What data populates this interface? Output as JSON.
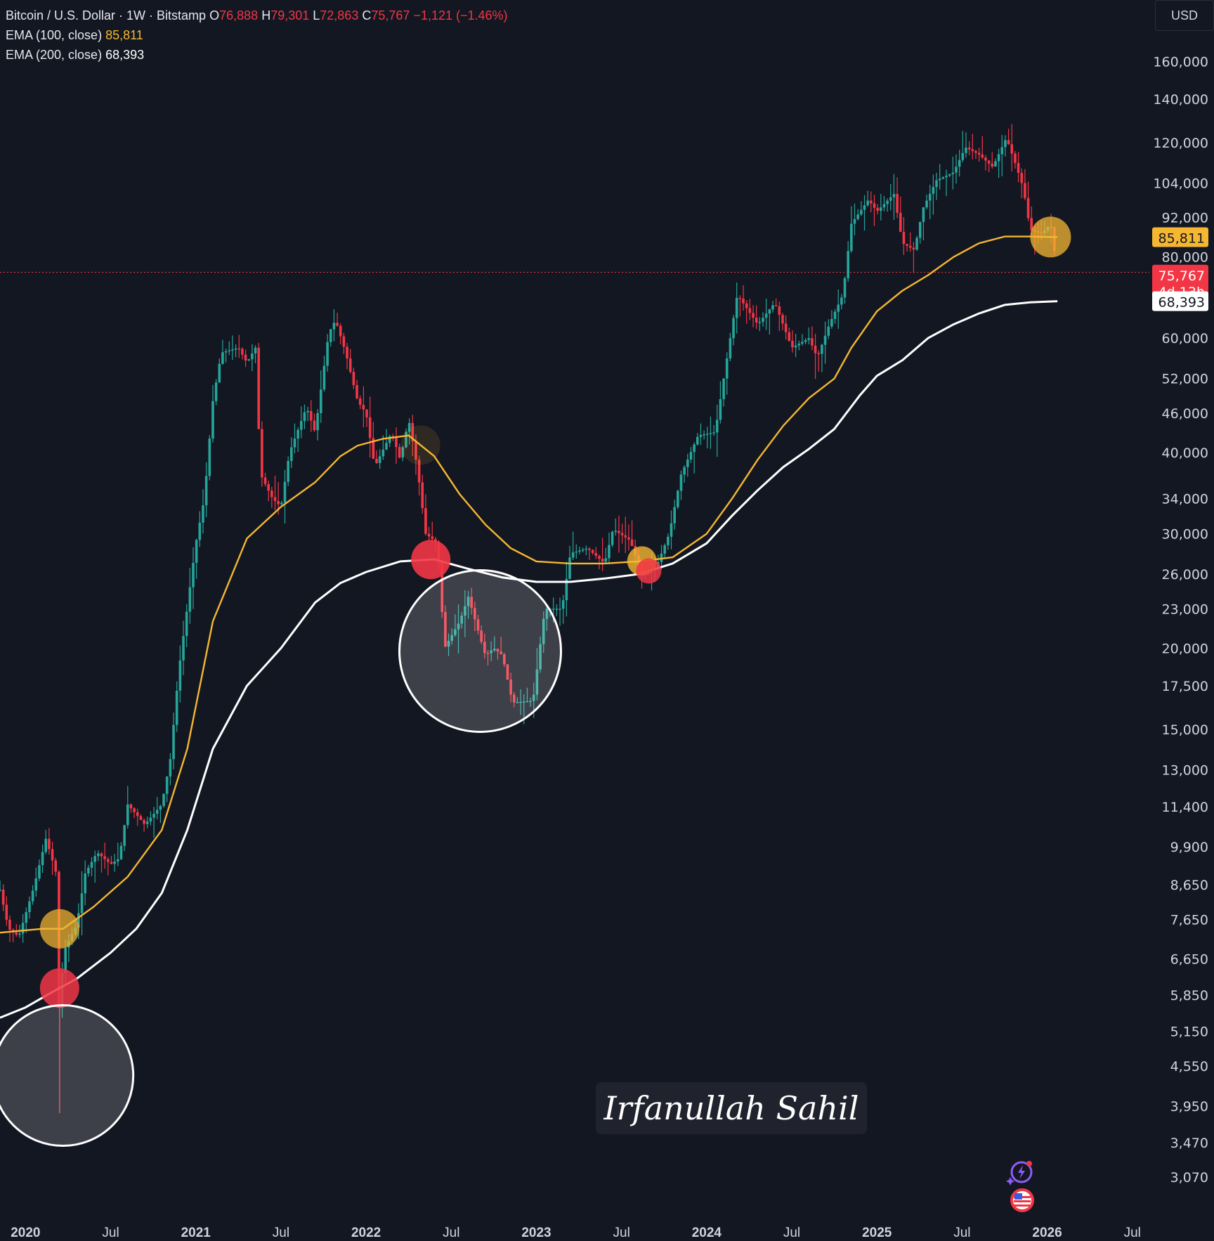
{
  "header": {
    "symbol": "Bitcoin / U.S. Dollar · 1W · Bitstamp",
    "open_label": "O",
    "open": "76,888",
    "high_label": "H",
    "high": "79,301",
    "low_label": "L",
    "low": "72,863",
    "close_label": "C",
    "close": "75,767",
    "change": "−1,121 (−1.46%)",
    "ema100_label": "EMA (100, close)",
    "ema100_value": "85,811",
    "ema200_label": "EMA (200, close)",
    "ema200_value": "68,393"
  },
  "currency_button": "USD",
  "watermark": "Irfanullah Sahil",
  "icons": {
    "assistant": "sparkle-bolt-icon",
    "region": "us-flag-icon"
  },
  "colors": {
    "background": "#131722",
    "up": "#26a69a",
    "down": "#f23645",
    "ema100": "#f5b731",
    "ema200": "#ffffff"
  },
  "chart_data": {
    "type": "line",
    "title": "Bitcoin / U.S. Dollar · 1W · Bitstamp",
    "scale": "log",
    "ylim": [
      2800,
      180000
    ],
    "xlim": [
      2019.85,
      2026.6
    ],
    "y_ticks": [
      "160,000",
      "140,000",
      "120,000",
      "104,000",
      "92,000",
      "80,000",
      "60,000",
      "52,000",
      "46,000",
      "40,000",
      "34,000",
      "30,000",
      "26,000",
      "23,000",
      "20,000",
      "17,500",
      "15,000",
      "13,000",
      "11,400",
      "9,900",
      "8,650",
      "7,650",
      "6,650",
      "5,850",
      "5,150",
      "4,550",
      "3,950",
      "3,470",
      "3,070"
    ],
    "x_ticks": [
      {
        "label": "2020",
        "x": 2020.0
      },
      {
        "label": "Jul",
        "x": 2020.5
      },
      {
        "label": "2021",
        "x": 2021.0
      },
      {
        "label": "Jul",
        "x": 2021.5
      },
      {
        "label": "2022",
        "x": 2022.0
      },
      {
        "label": "Jul",
        "x": 2022.5
      },
      {
        "label": "2023",
        "x": 2023.0
      },
      {
        "label": "Jul",
        "x": 2023.5
      },
      {
        "label": "2024",
        "x": 2024.0
      },
      {
        "label": "Jul",
        "x": 2024.5
      },
      {
        "label": "2025",
        "x": 2025.0
      },
      {
        "label": "Jul",
        "x": 2025.5
      },
      {
        "label": "2026",
        "x": 2026.0
      },
      {
        "label": "Jul",
        "x": 2026.5
      }
    ],
    "price_path": [
      [
        2019.85,
        8500
      ],
      [
        2019.9,
        7400
      ],
      [
        2019.96,
        7200
      ],
      [
        2020.05,
        8600
      ],
      [
        2020.12,
        10200
      ],
      [
        2020.18,
        9000
      ],
      [
        2020.2,
        5000
      ],
      [
        2020.22,
        6800
      ],
      [
        2020.3,
        7500
      ],
      [
        2020.35,
        9000
      ],
      [
        2020.42,
        9700
      ],
      [
        2020.5,
        9300
      ],
      [
        2020.55,
        9500
      ],
      [
        2020.6,
        11500
      ],
      [
        2020.7,
        10700
      ],
      [
        2020.8,
        11500
      ],
      [
        2020.85,
        13500
      ],
      [
        2020.9,
        18500
      ],
      [
        2021.0,
        29000
      ],
      [
        2021.05,
        34000
      ],
      [
        2021.1,
        48000
      ],
      [
        2021.15,
        57000
      ],
      [
        2021.25,
        58000
      ],
      [
        2021.3,
        55000
      ],
      [
        2021.35,
        58000
      ],
      [
        2021.38,
        37000
      ],
      [
        2021.45,
        34000
      ],
      [
        2021.5,
        33000
      ],
      [
        2021.55,
        40000
      ],
      [
        2021.65,
        47000
      ],
      [
        2021.7,
        43000
      ],
      [
        2021.78,
        61000
      ],
      [
        2021.82,
        64000
      ],
      [
        2021.88,
        57000
      ],
      [
        2021.95,
        48000
      ],
      [
        2022.0,
        46000
      ],
      [
        2022.05,
        38000
      ],
      [
        2022.15,
        43000
      ],
      [
        2022.2,
        39000
      ],
      [
        2022.25,
        45000
      ],
      [
        2022.3,
        38000
      ],
      [
        2022.35,
        30000
      ],
      [
        2022.42,
        29000
      ],
      [
        2022.46,
        20000
      ],
      [
        2022.55,
        22000
      ],
      [
        2022.6,
        24000
      ],
      [
        2022.7,
        19500
      ],
      [
        2022.75,
        20000
      ],
      [
        2022.8,
        19500
      ],
      [
        2022.86,
        16500
      ],
      [
        2022.98,
        16600
      ],
      [
        2023.05,
        23000
      ],
      [
        2023.15,
        23000
      ],
      [
        2023.2,
        28000
      ],
      [
        2023.3,
        28500
      ],
      [
        2023.4,
        27000
      ],
      [
        2023.45,
        30500
      ],
      [
        2023.55,
        29300
      ],
      [
        2023.62,
        26000
      ],
      [
        2023.7,
        26500
      ],
      [
        2023.78,
        30000
      ],
      [
        2023.85,
        37000
      ],
      [
        2023.95,
        42500
      ],
      [
        2024.05,
        43000
      ],
      [
        2024.1,
        52000
      ],
      [
        2024.18,
        70000
      ],
      [
        2024.3,
        63000
      ],
      [
        2024.4,
        68000
      ],
      [
        2024.5,
        58000
      ],
      [
        2024.6,
        60000
      ],
      [
        2024.65,
        56000
      ],
      [
        2024.72,
        63000
      ],
      [
        2024.8,
        70000
      ],
      [
        2024.85,
        90000
      ],
      [
        2024.95,
        98000
      ],
      [
        2025.0,
        94000
      ],
      [
        2025.1,
        100000
      ],
      [
        2025.15,
        84000
      ],
      [
        2025.22,
        82000
      ],
      [
        2025.27,
        95000
      ],
      [
        2025.35,
        105000
      ],
      [
        2025.45,
        108000
      ],
      [
        2025.52,
        118000
      ],
      [
        2025.6,
        115000
      ],
      [
        2025.68,
        110000
      ],
      [
        2025.76,
        122000
      ],
      [
        2025.82,
        110000
      ],
      [
        2025.86,
        102000
      ],
      [
        2025.9,
        88000
      ],
      [
        2025.97,
        87000
      ],
      [
        2026.02,
        90000
      ],
      [
        2026.06,
        75767
      ]
    ],
    "series": [
      {
        "name": "EMA (100, close)",
        "last_value": 85811,
        "values": [
          [
            2019.85,
            7300
          ],
          [
            2020.1,
            7400
          ],
          [
            2020.22,
            7400
          ],
          [
            2020.4,
            8000
          ],
          [
            2020.6,
            8900
          ],
          [
            2020.8,
            10500
          ],
          [
            2020.95,
            14000
          ],
          [
            2021.1,
            22000
          ],
          [
            2021.3,
            29500
          ],
          [
            2021.5,
            33000
          ],
          [
            2021.7,
            36000
          ],
          [
            2021.85,
            39500
          ],
          [
            2021.95,
            41000
          ],
          [
            2022.1,
            42000
          ],
          [
            2022.25,
            42500
          ],
          [
            2022.4,
            39500
          ],
          [
            2022.55,
            34500
          ],
          [
            2022.7,
            31000
          ],
          [
            2022.85,
            28500
          ],
          [
            2023.0,
            27200
          ],
          [
            2023.2,
            27000
          ],
          [
            2023.4,
            27000
          ],
          [
            2023.6,
            27200
          ],
          [
            2023.8,
            27600
          ],
          [
            2024.0,
            30000
          ],
          [
            2024.15,
            34000
          ],
          [
            2024.3,
            39000
          ],
          [
            2024.45,
            44000
          ],
          [
            2024.6,
            48500
          ],
          [
            2024.75,
            52000
          ],
          [
            2024.85,
            58000
          ],
          [
            2025.0,
            66000
          ],
          [
            2025.15,
            71000
          ],
          [
            2025.3,
            75000
          ],
          [
            2025.45,
            80000
          ],
          [
            2025.6,
            84000
          ],
          [
            2025.75,
            86000
          ],
          [
            2025.9,
            86000
          ],
          [
            2026.06,
            85811
          ]
        ]
      },
      {
        "name": "EMA (200, close)",
        "last_value": 68393,
        "values": [
          [
            2019.85,
            5400
          ],
          [
            2020.0,
            5600
          ],
          [
            2020.15,
            5900
          ],
          [
            2020.3,
            6200
          ],
          [
            2020.5,
            6800
          ],
          [
            2020.65,
            7400
          ],
          [
            2020.8,
            8400
          ],
          [
            2020.95,
            10500
          ],
          [
            2021.1,
            14000
          ],
          [
            2021.3,
            17500
          ],
          [
            2021.5,
            20000
          ],
          [
            2021.7,
            23500
          ],
          [
            2021.85,
            25200
          ],
          [
            2022.0,
            26200
          ],
          [
            2022.2,
            27200
          ],
          [
            2022.4,
            27400
          ],
          [
            2022.6,
            26500
          ],
          [
            2022.8,
            25700
          ],
          [
            2023.0,
            25300
          ],
          [
            2023.2,
            25300
          ],
          [
            2023.4,
            25600
          ],
          [
            2023.6,
            26000
          ],
          [
            2023.8,
            27000
          ],
          [
            2024.0,
            29000
          ],
          [
            2024.15,
            32000
          ],
          [
            2024.3,
            35000
          ],
          [
            2024.45,
            38000
          ],
          [
            2024.6,
            40500
          ],
          [
            2024.75,
            43500
          ],
          [
            2024.9,
            49000
          ],
          [
            2025.0,
            52500
          ],
          [
            2025.15,
            55500
          ],
          [
            2025.3,
            60000
          ],
          [
            2025.45,
            63000
          ],
          [
            2025.6,
            65500
          ],
          [
            2025.75,
            67500
          ],
          [
            2025.9,
            68100
          ],
          [
            2026.06,
            68393
          ]
        ]
      }
    ],
    "price_label": {
      "value": "75,767",
      "countdown": "4d 13h"
    }
  }
}
